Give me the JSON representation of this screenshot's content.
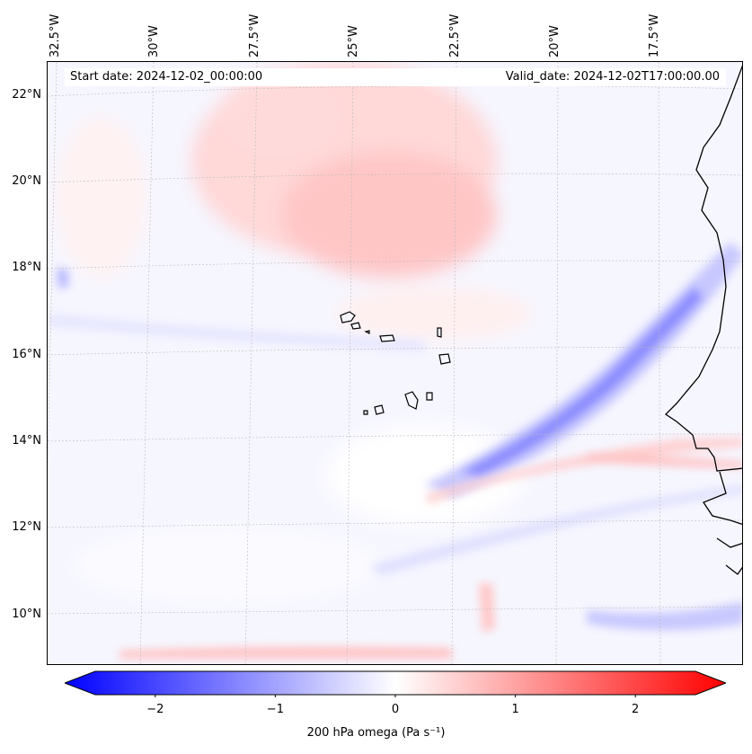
{
  "lat_labels": [
    "22°N",
    "20°N",
    "18°N",
    "16°N",
    "14°N",
    "12°N",
    "10°N"
  ],
  "lon_labels": [
    "32.5°W",
    "30°W",
    "27.5°W",
    "25°W",
    "22.5°W",
    "20°W",
    "17.5°W"
  ],
  "header": {
    "start": "Start date: 2024-12-02_00:00:00",
    "valid": "Valid_date: 2024-12-02T17:00:00.00"
  },
  "colorbar": {
    "ticks": [
      "−2",
      "−1",
      "0",
      "1",
      "2"
    ],
    "tick_values": [
      -2,
      -1,
      0,
      1,
      2
    ],
    "range": [
      -2.5,
      2.5
    ],
    "label": "200 hPa omega (Pa s⁻¹)",
    "colors": {
      "negative": "#0000ff",
      "zero": "#ffffff",
      "positive": "#ff0000"
    }
  },
  "chart_data": {
    "type": "heatmap",
    "variable": "200 hPa omega",
    "units": "Pa s-1",
    "lat_range": [
      9,
      22.5
    ],
    "lon_range": [
      -32.5,
      -16.5
    ],
    "features": [
      {
        "name": "sinking region (positive omega)",
        "approx_center": [
          -24,
          20
        ],
        "value": 0.6
      },
      {
        "name": "rising band (negative omega)",
        "from": [
          -22,
          13
        ],
        "to": [
          -17,
          17
        ],
        "value": -1.0
      },
      {
        "name": "positive streak near 9°N",
        "approx_center": [
          -27,
          9.2
        ],
        "value": 0.8
      }
    ]
  }
}
